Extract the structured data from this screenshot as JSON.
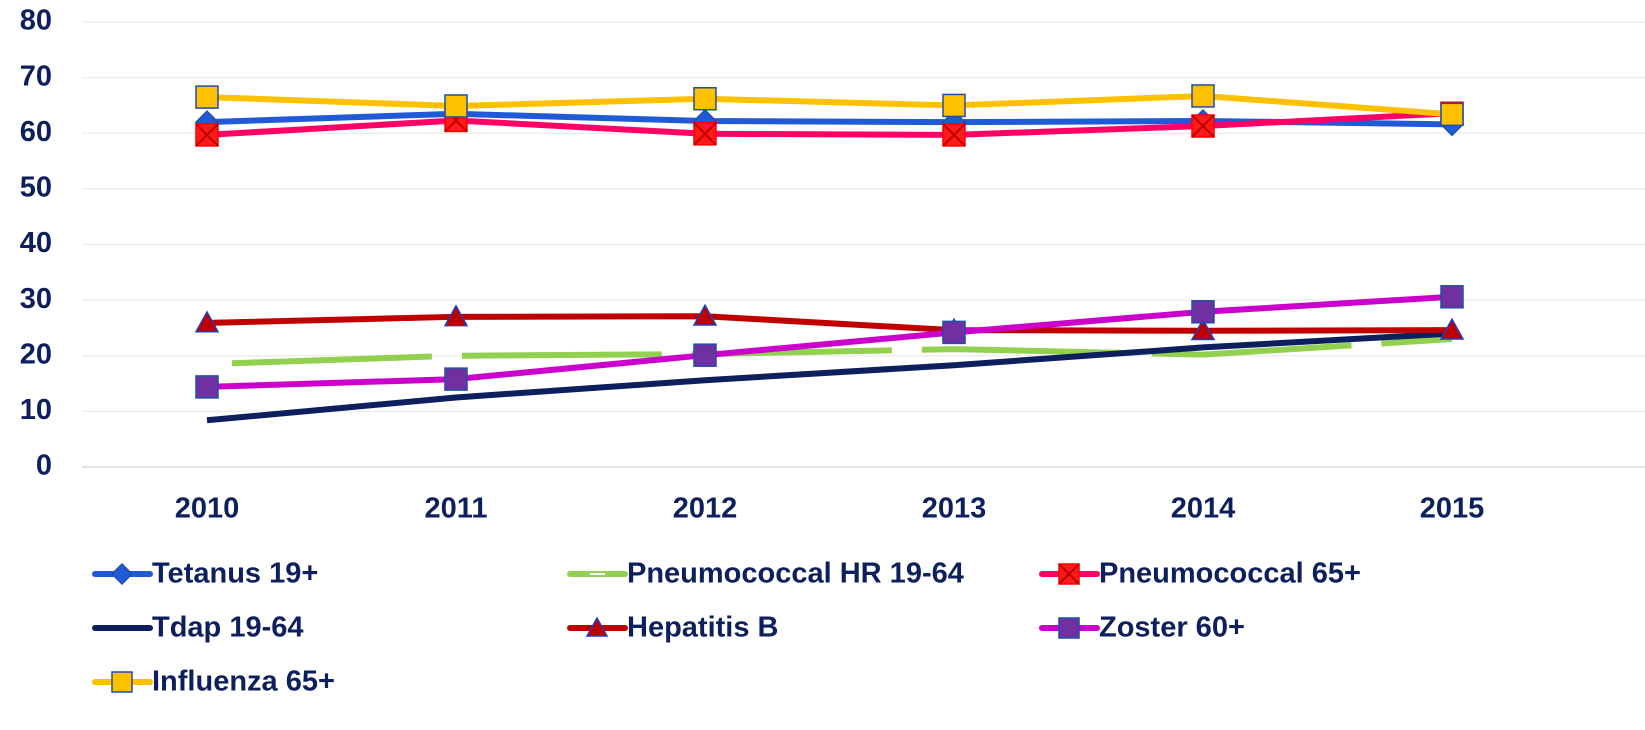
{
  "chart_data": {
    "type": "line",
    "categories": [
      "2010",
      "2011",
      "2012",
      "2013",
      "2014",
      "2015"
    ],
    "ylim": [
      0,
      80
    ],
    "yticks": [
      0,
      10,
      20,
      30,
      40,
      50,
      60,
      70,
      80
    ],
    "grid": true,
    "legend": "bottom",
    "series": [
      {
        "name": "Tetanus 19+",
        "color": "#1f5bd6",
        "marker": "diamond",
        "marker_color": "#1f5bd6",
        "values": [
          62.0,
          63.5,
          62.2,
          62.0,
          62.2,
          61.6
        ]
      },
      {
        "name": "Pneumococcal HR 19-64",
        "color": "#92d050",
        "dash": true,
        "marker": "none",
        "values": [
          18.5,
          20.0,
          20.3,
          21.2,
          20.2,
          23.0
        ]
      },
      {
        "name": "Pneumococcal 65+",
        "color": "#ff0066",
        "marker": "xsquare",
        "marker_color": "#ff1a1a",
        "values": [
          59.7,
          62.3,
          59.9,
          59.7,
          61.3,
          63.6
        ]
      },
      {
        "name": "Tdap 19-64",
        "color": "#0d1f5c",
        "marker": "none",
        "values": [
          8.4,
          12.5,
          15.6,
          18.3,
          21.5,
          24.0
        ]
      },
      {
        "name": "Hepatitis B",
        "color": "#c00000",
        "marker": "triangle",
        "marker_color": "#c00000",
        "values": [
          25.9,
          27.0,
          27.1,
          24.6,
          24.5,
          24.6
        ]
      },
      {
        "name": "Zoster 60+",
        "color": "#cc00cc",
        "marker": "square",
        "marker_color": "#7030a0",
        "values": [
          14.4,
          15.8,
          20.1,
          24.2,
          27.9,
          30.6
        ]
      },
      {
        "name": "Influenza 65+",
        "color": "#ffc000",
        "marker": "square",
        "marker_color": "#ffc000",
        "values": [
          66.5,
          64.9,
          66.2,
          65.0,
          66.7,
          63.4
        ]
      }
    ]
  }
}
